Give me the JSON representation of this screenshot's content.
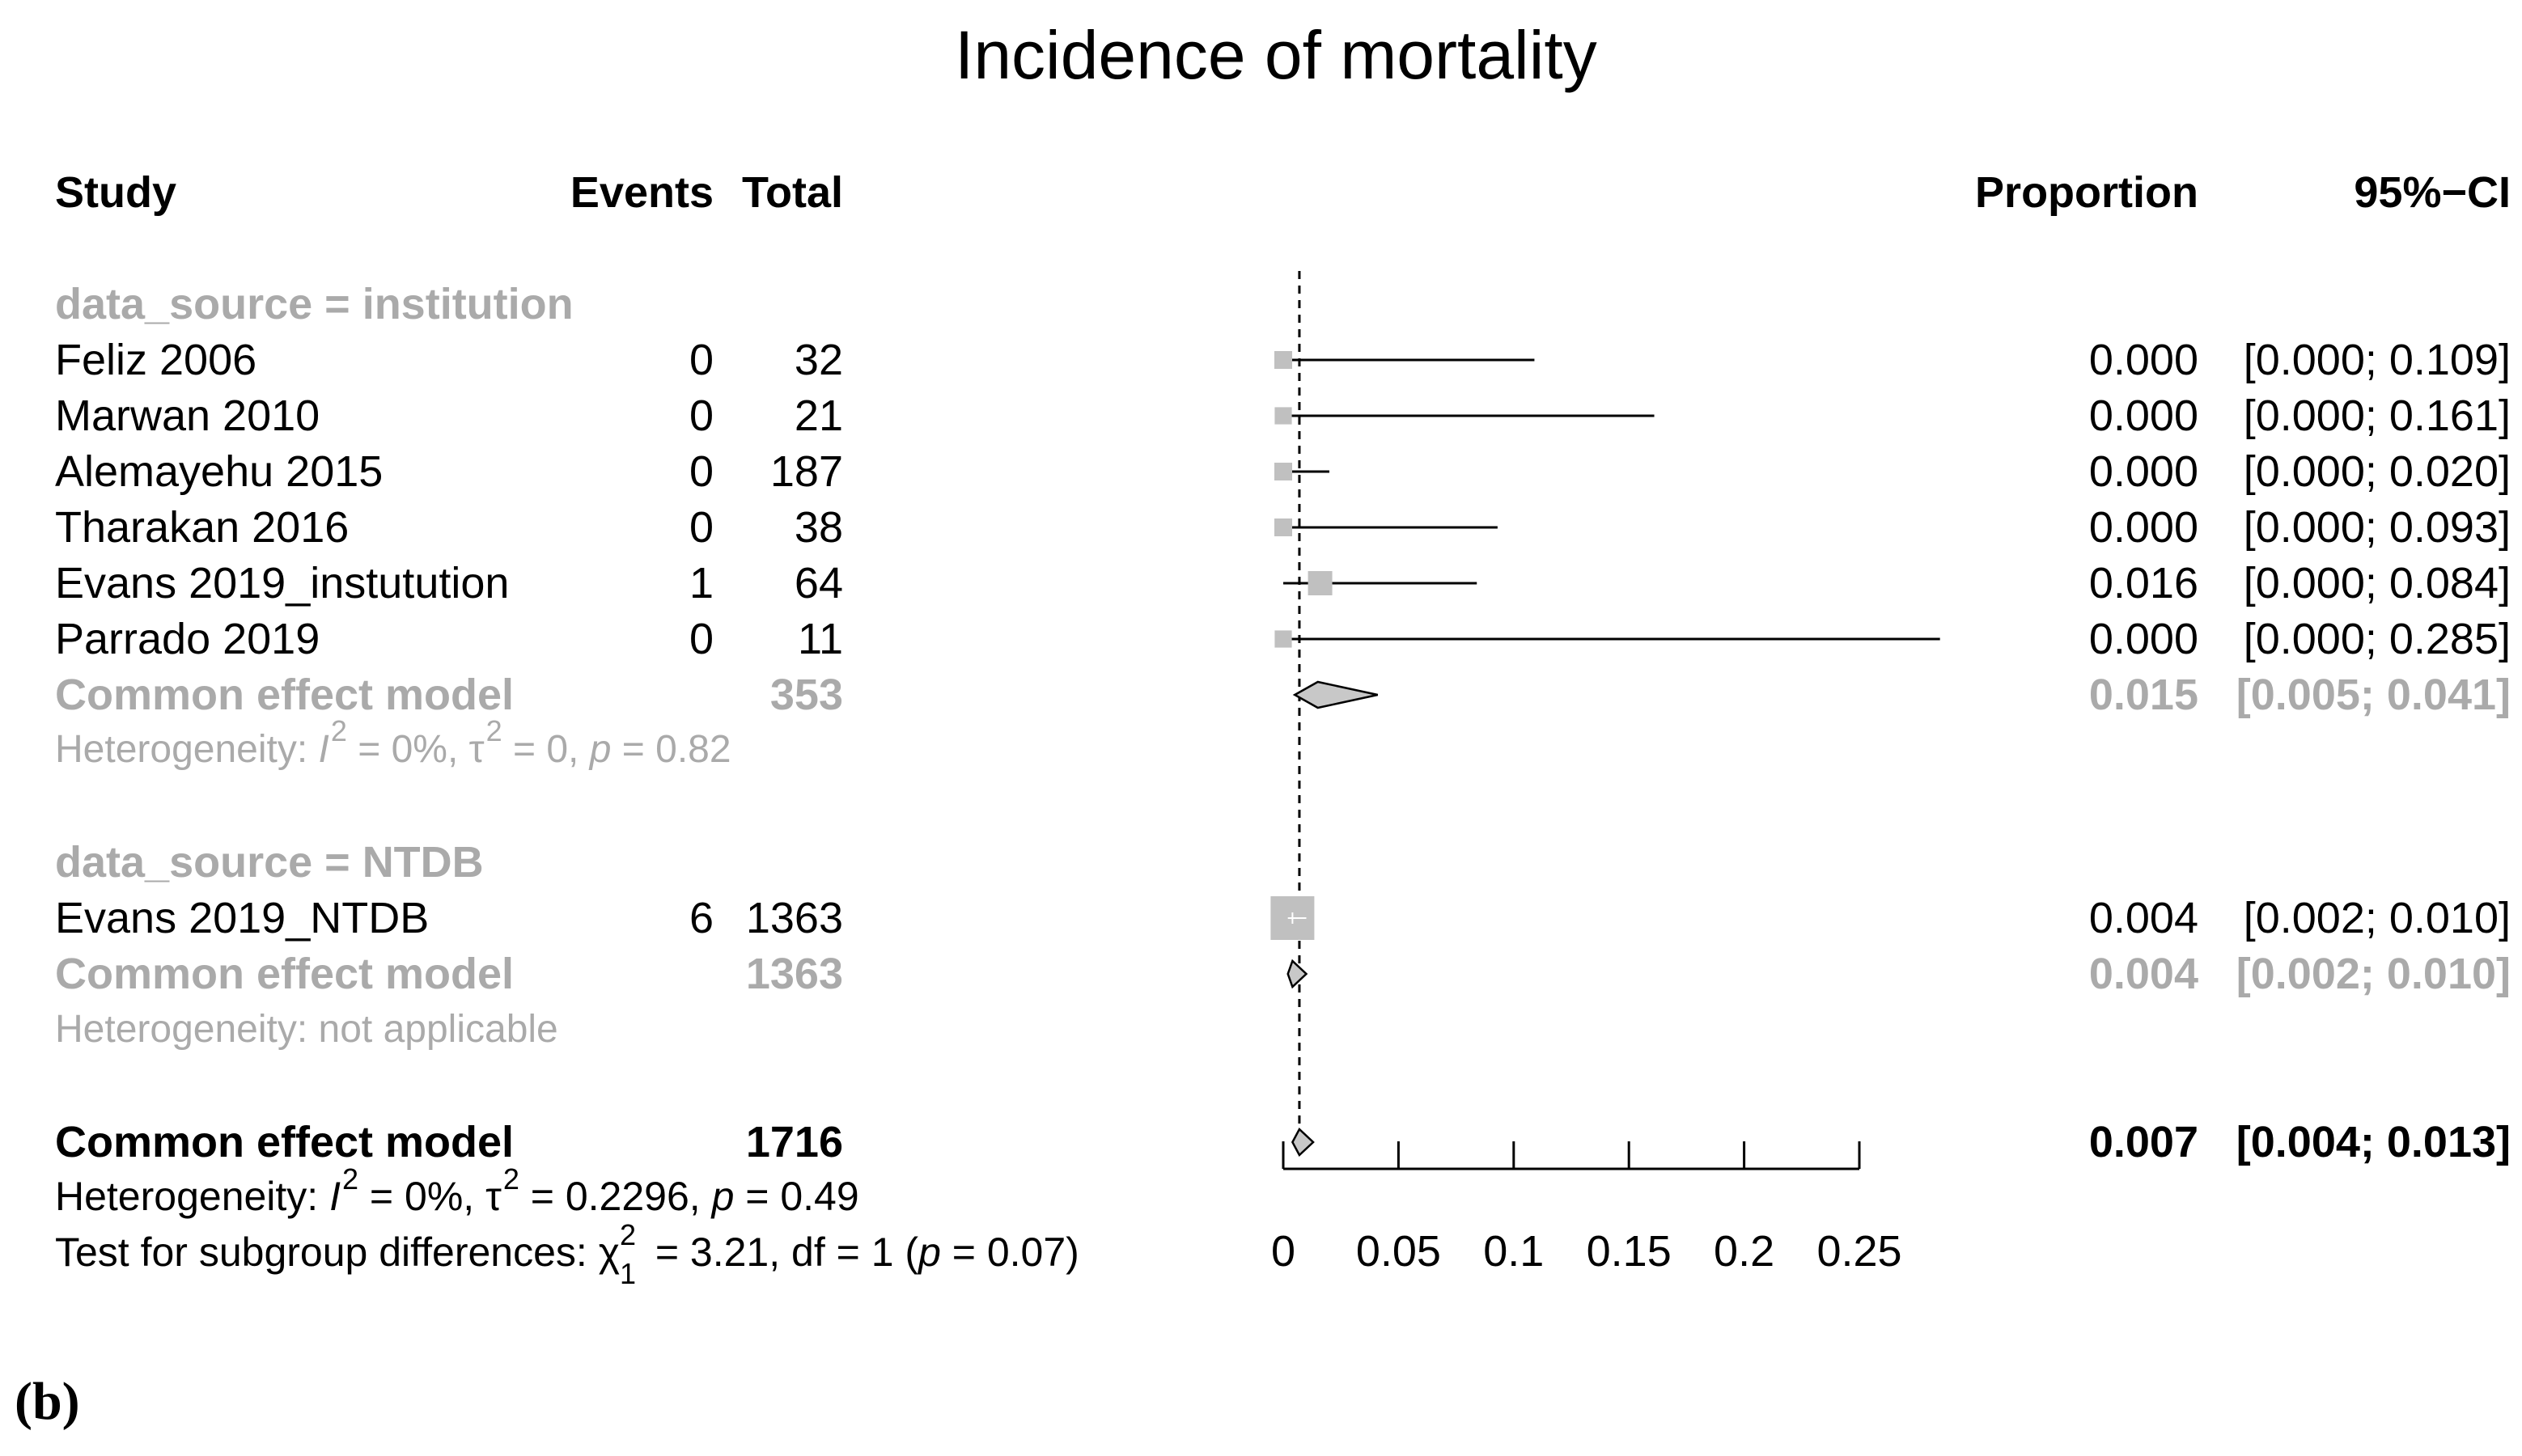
{
  "chart_data": {
    "type": "forest",
    "title": "Incidence of mortality",
    "panel_label": "(b)",
    "columns": {
      "study": "Study",
      "events": "Events",
      "total": "Total",
      "proportion": "Proportion",
      "ci": "95%−CI"
    },
    "subgroups": [
      {
        "label": "data_source = institution",
        "studies": [
          {
            "name": "Feliz 2006",
            "events": "0",
            "total": "32",
            "proportion": 0.0,
            "lower": 0.0,
            "upper": 0.109,
            "prop_text": "0.000",
            "ci_text": "[0.000; 0.109]",
            "weight": 0.2
          },
          {
            "name": "Marwan 2010",
            "events": "0",
            "total": "21",
            "proportion": 0.0,
            "lower": 0.0,
            "upper": 0.161,
            "prop_text": "0.000",
            "ci_text": "[0.000; 0.161]",
            "weight": 0.18
          },
          {
            "name": "Alemayehu 2015",
            "events": "0",
            "total": "187",
            "proportion": 0.0,
            "lower": 0.0,
            "upper": 0.02,
            "prop_text": "0.000",
            "ci_text": "[0.000; 0.020]",
            "weight": 0.2
          },
          {
            "name": "Tharakan 2016",
            "events": "0",
            "total": "38",
            "proportion": 0.0,
            "lower": 0.0,
            "upper": 0.093,
            "prop_text": "0.000",
            "ci_text": "[0.000; 0.093]",
            "weight": 0.2
          },
          {
            "name": "Evans 2019_instutution",
            "events": "1",
            "total": "64",
            "proportion": 0.016,
            "lower": 0.0,
            "upper": 0.084,
            "prop_text": "0.016",
            "ci_text": "[0.000; 0.084]",
            "weight": 0.4
          },
          {
            "name": "Parrado 2019",
            "events": "0",
            "total": "11",
            "proportion": 0.0,
            "lower": 0.0,
            "upper": 0.285,
            "prop_text": "0.000",
            "ci_text": "[0.000; 0.285]",
            "weight": 0.18
          }
        ],
        "pooled": {
          "label": "Common effect model",
          "total": "353",
          "estimate": 0.015,
          "lower": 0.005,
          "upper": 0.041,
          "prop_text": "0.015",
          "ci_text": "[0.005; 0.041]"
        },
        "heterogeneity": {
          "prefix": "Heterogeneity: ",
          "I": "I",
          "I_rest": " = 0%, ",
          "tau": "τ",
          "tau_rest": " = 0, ",
          "p": "p",
          "p_rest": " = 0.82",
          "sup": "2"
        }
      },
      {
        "label": "data_source = NTDB",
        "studies": [
          {
            "name": "Evans 2019_NTDB",
            "events": "6",
            "total": "1363",
            "proportion": 0.004,
            "lower": 0.002,
            "upper": 0.01,
            "prop_text": "0.004",
            "ci_text": "[0.002; 0.010]",
            "weight": 1.0
          }
        ],
        "pooled": {
          "label": "Common effect model",
          "total": "1363",
          "estimate": 0.004,
          "lower": 0.002,
          "upper": 0.01,
          "prop_text": "0.004",
          "ci_text": "[0.002; 0.010]"
        },
        "heterogeneity_text": "Heterogeneity: not applicable"
      }
    ],
    "overall": {
      "label": "Common effect model",
      "total": "1716",
      "estimate": 0.007,
      "lower": 0.004,
      "upper": 0.013,
      "prop_text": "0.007",
      "ci_text": "[0.004; 0.013]",
      "heterogeneity": {
        "prefix": "Heterogeneity: ",
        "I": "I",
        "I_rest": " = 0%, ",
        "tau": "τ",
        "tau_rest": " = 0.2296, ",
        "p": "p",
        "p_rest": " = 0.49",
        "sup": "2"
      },
      "subgroup_test": {
        "prefix": "Test for subgroup differences: ",
        "chi": "χ",
        "sup": "2",
        "sub": "1",
        "rest1": " = 3.21, df = 1 (",
        "p": "p",
        "rest2": " = 0.07)"
      }
    },
    "reference_line": 0.007,
    "xlim": [
      0,
      0.25
    ],
    "x_ticks": [
      0,
      0.05,
      0.1,
      0.15,
      0.2,
      0.25
    ],
    "x_tick_labels": [
      "0",
      "0.05",
      "0.1",
      "0.15",
      "0.2",
      "0.25"
    ],
    "colors": {
      "text": "#000000",
      "subgroup": "#aaaaaa",
      "square": "#c0c0c0",
      "diamond": "#c8c8c8"
    }
  }
}
